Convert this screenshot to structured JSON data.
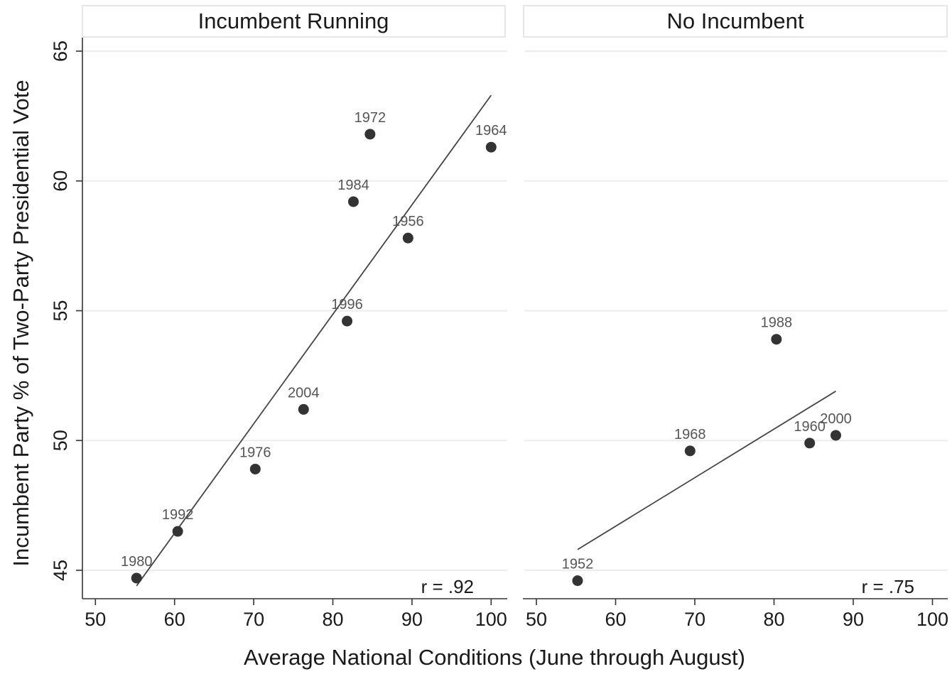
{
  "chart_data": {
    "type": "scatter",
    "ylabel": "Incumbent Party % of Two-Party Presidential  Vote",
    "xlabel": "Average National Conditions (June through August)",
    "ylim": [
      44,
      66
    ],
    "xlim": [
      48,
      103
    ],
    "yticks": [
      45,
      50,
      55,
      60,
      65
    ],
    "xticks": [
      50,
      60,
      70,
      80,
      90,
      100
    ],
    "grid": true,
    "panels": [
      {
        "title": "Incumbent Running",
        "r_label": "r = .92",
        "points": [
          {
            "label": "1980",
            "x": 55.2,
            "y": 44.7
          },
          {
            "label": "1992",
            "x": 60.4,
            "y": 46.5
          },
          {
            "label": "1976",
            "x": 70.2,
            "y": 48.9
          },
          {
            "label": "2004",
            "x": 76.3,
            "y": 51.2
          },
          {
            "label": "1996",
            "x": 81.8,
            "y": 54.6
          },
          {
            "label": "1984",
            "x": 82.6,
            "y": 59.2
          },
          {
            "label": "1956",
            "x": 89.5,
            "y": 57.8
          },
          {
            "label": "1972",
            "x": 84.7,
            "y": 61.8
          },
          {
            "label": "1964",
            "x": 100.0,
            "y": 61.3
          }
        ],
        "fit_line": {
          "x": [
            55.2,
            100.0
          ],
          "y": [
            44.4,
            63.3
          ]
        }
      },
      {
        "title": "No Incumbent",
        "r_label": "r = .75",
        "points": [
          {
            "label": "1952",
            "x": 55.2,
            "y": 44.6
          },
          {
            "label": "1968",
            "x": 69.4,
            "y": 49.6
          },
          {
            "label": "1988",
            "x": 80.3,
            "y": 53.9
          },
          {
            "label": "1960",
            "x": 84.5,
            "y": 49.9
          },
          {
            "label": "2000",
            "x": 87.8,
            "y": 50.2
          }
        ],
        "fit_line": {
          "x": [
            55.2,
            87.8
          ],
          "y": [
            45.8,
            51.9
          ]
        }
      }
    ]
  }
}
